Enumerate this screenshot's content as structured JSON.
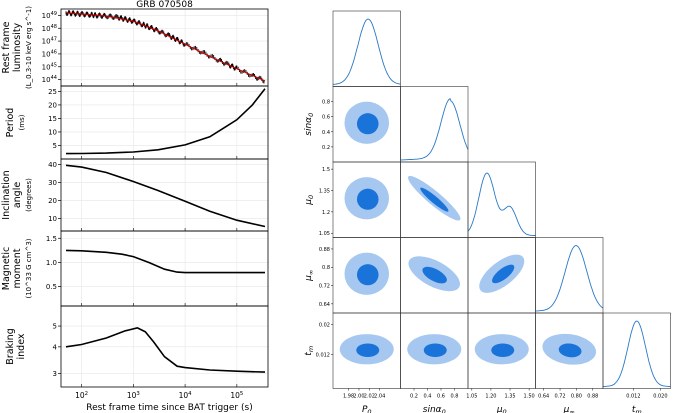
{
  "chart_data": [
    {
      "type": "line",
      "title": "GRB 070508",
      "xlabel": "Rest frame time since BAT trigger (s)",
      "xscale": "log",
      "xlim": [
        40,
        400000
      ],
      "xticks": [
        "10^2",
        "10^3",
        "10^4",
        "10^5"
      ],
      "panels": [
        {
          "id": "lum",
          "ylabel_lines": [
            "Rest frame",
            "luminosity",
            "(L_0.3-10 keV erg s^-1)"
          ],
          "yscale": "log",
          "ylim": [
            43.5,
            49.5
          ],
          "yticks": [
            "10^44",
            "10^45",
            "10^46",
            "10^47",
            "10^48",
            "10^49"
          ],
          "series": [
            {
              "name": "data",
              "color": "#000000",
              "x": [
                50,
                70,
                100,
                150,
                200,
                300,
                500,
                700,
                1000,
                1500,
                2000,
                3000,
                5000,
                7000,
                10000,
                20000,
                40000,
                70000,
                100000,
                200000,
                350000
              ],
              "y": [
                49.2,
                49.15,
                49.1,
                49.05,
                49.0,
                48.95,
                48.85,
                48.7,
                48.55,
                48.3,
                48.1,
                47.8,
                47.4,
                47.1,
                46.75,
                46.2,
                45.6,
                45.15,
                44.85,
                44.3,
                43.9
              ]
            },
            {
              "name": "model",
              "color": "#cc0000",
              "x": [
                50,
                100,
                300,
                1000,
                3000,
                10000,
                30000,
                100000,
                350000
              ],
              "y": [
                49.2,
                49.1,
                48.95,
                48.55,
                47.8,
                46.75,
                45.8,
                44.85,
                43.9
              ]
            }
          ]
        },
        {
          "id": "period",
          "ylabel_lines": [
            "Period",
            "(ms)"
          ],
          "yscale": "linear",
          "ylim": [
            0,
            27
          ],
          "yticks": [
            "5",
            "10",
            "15",
            "20",
            "25"
          ],
          "series": [
            {
              "name": "P",
              "color": "#000000",
              "x": [
                50,
                100,
                300,
                1000,
                3000,
                10000,
                30000,
                100000,
                200000,
                350000
              ],
              "y": [
                2.0,
                2.05,
                2.2,
                2.6,
                3.4,
                5.2,
                8.2,
                14.5,
                20.0,
                26.0
              ]
            }
          ]
        },
        {
          "id": "incl",
          "ylabel_lines": [
            "Inclination",
            "angle",
            "(degrees)"
          ],
          "yscale": "linear",
          "ylim": [
            3,
            43
          ],
          "yticks": [
            "10",
            "20",
            "30",
            "40"
          ],
          "series": [
            {
              "name": "alpha",
              "color": "#000000",
              "x": [
                50,
                100,
                300,
                1000,
                3000,
                10000,
                30000,
                100000,
                350000
              ],
              "y": [
                39.5,
                38.5,
                35.5,
                30.5,
                25.5,
                19.5,
                14.0,
                9.0,
                5.5
              ]
            }
          ]
        },
        {
          "id": "mu",
          "ylabel_lines": [
            "Magnetic",
            "moment",
            "(10^33 G cm^3)"
          ],
          "yscale": "linear",
          "ylim": [
            0.1,
            1.65
          ],
          "yticks": [
            "0.5",
            "1.0",
            "1.5"
          ],
          "series": [
            {
              "name": "mu",
              "color": "#000000",
              "x": [
                50,
                100,
                300,
                600,
                1000,
                2000,
                4000,
                7000,
                10000,
                30000,
                100000,
                350000
              ],
              "y": [
                1.25,
                1.24,
                1.21,
                1.17,
                1.12,
                1.0,
                0.86,
                0.8,
                0.79,
                0.79,
                0.79,
                0.79
              ]
            }
          ]
        },
        {
          "id": "brake",
          "ylabel_lines": [
            "Braking",
            "index"
          ],
          "yscale": "log",
          "ylim": [
            2.6,
            6.2
          ],
          "yticks": [
            "3",
            "4",
            "5"
          ],
          "series": [
            {
              "name": "n",
              "color": "#000000",
              "x": [
                50,
                100,
                300,
                700,
                1200,
                1700,
                2500,
                4000,
                7000,
                10000,
                30000,
                100000,
                350000
              ],
              "y": [
                4.0,
                4.1,
                4.4,
                4.75,
                4.9,
                4.7,
                4.2,
                3.6,
                3.25,
                3.2,
                3.12,
                3.08,
                3.05
              ]
            }
          ]
        }
      ]
    },
    {
      "type": "corner",
      "parameters": [
        "P_0",
        "sinα_0",
        "μ_0",
        "μ_∞",
        "t_m"
      ],
      "axis_labels": [
        "P0",
        "sinα0",
        "μ0",
        "μ∞",
        "tm"
      ],
      "ranges": [
        [
          1.95,
          2.08
        ],
        [
          0.0,
          1.0
        ],
        [
          1.02,
          1.55
        ],
        [
          0.6,
          0.93
        ],
        [
          0.003,
          0.023
        ]
      ],
      "tick_labels": [
        [
          "1.98",
          "2.00",
          "2.02",
          "2.04"
        ],
        [
          "0.2",
          "0.4",
          "0.6",
          "0.8"
        ],
        [
          "1.05",
          "1.20",
          "1.35",
          "1.50"
        ],
        [
          "0.64",
          "0.72",
          "0.80",
          "0.88"
        ],
        [
          "0.012",
          "0.020"
        ]
      ],
      "tick_values": [
        [
          1.98,
          2.0,
          2.02,
          2.04
        ],
        [
          0.2,
          0.4,
          0.6,
          0.8
        ],
        [
          1.05,
          1.2,
          1.35,
          1.5
        ],
        [
          0.64,
          0.72,
          0.8,
          0.88
        ],
        [
          0.012,
          0.02
        ]
      ],
      "row_tick_labels": [
        [],
        [
          "0.2",
          "0.4",
          "0.6",
          "0.8"
        ],
        [
          "1.05",
          "1.2",
          "1.35",
          "1.5"
        ],
        [
          "0.64",
          "0.72",
          "0.8",
          "0.88"
        ],
        [
          "0.012",
          "0.02"
        ]
      ],
      "row_tick_values": [
        [],
        [
          0.2,
          0.4,
          0.6,
          0.8
        ],
        [
          1.05,
          1.2,
          1.35,
          1.5
        ],
        [
          0.64,
          0.72,
          0.8,
          0.88
        ],
        [
          0.012,
          0.02
        ]
      ],
      "marginal_peaks": [
        2.015,
        0.75,
        1.17,
        0.8,
        0.013
      ],
      "colors": {
        "line": "#2878c8",
        "outer": "#a6c8f0",
        "inner": "#1a73d9"
      }
    }
  ]
}
